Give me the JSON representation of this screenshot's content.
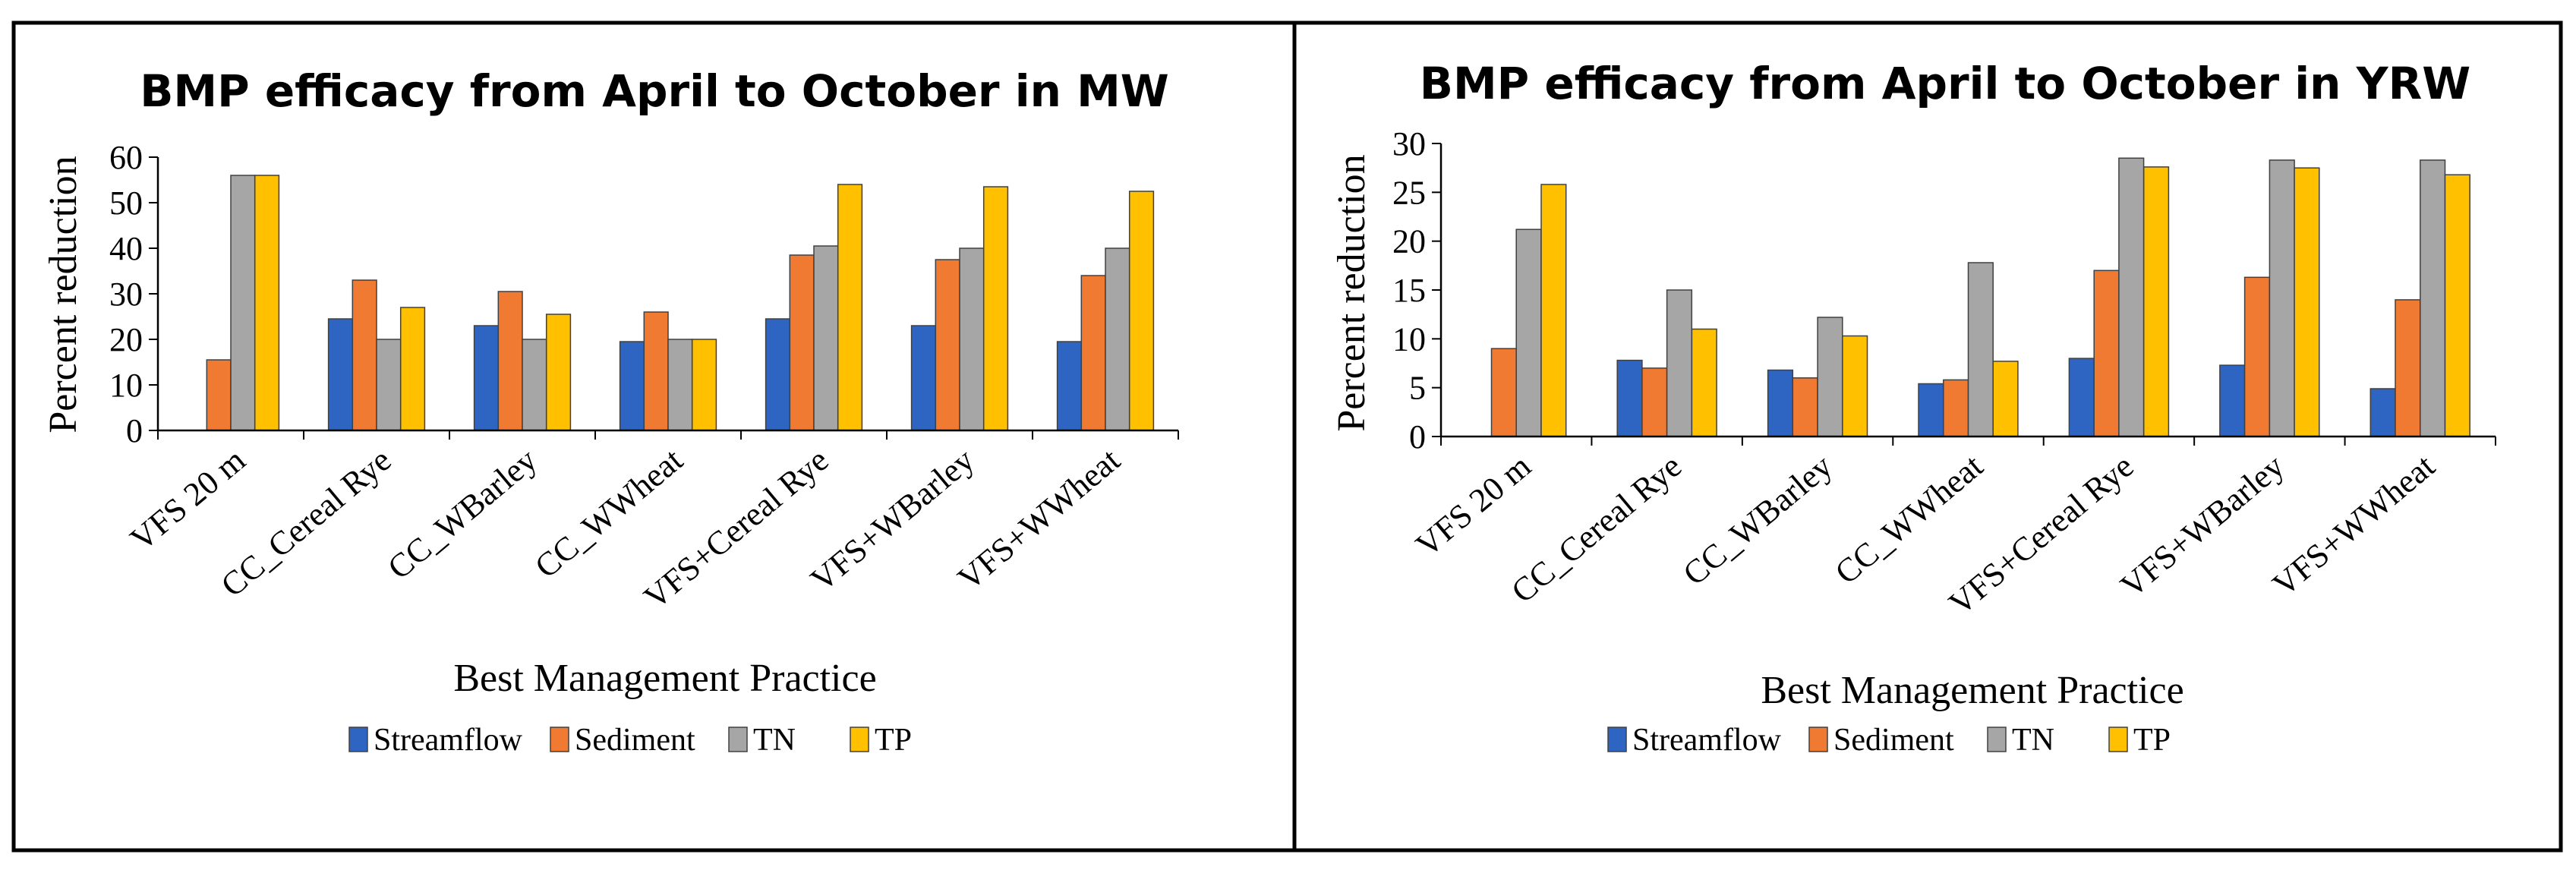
{
  "chart_data": [
    {
      "type": "bar",
      "title": "BMP efficacy from April to October in MW",
      "xlabel": "Best Management Practice",
      "ylabel": "Percent reduction",
      "ylim": [
        0,
        60
      ],
      "yticks": [
        0,
        10,
        20,
        30,
        40,
        50,
        60
      ],
      "grid": false,
      "legend": "bottom",
      "categories": [
        "VFS 20 m",
        "CC_Cereal Rye",
        "CC_WBarley",
        "CC_WWheat",
        "VFS+Cereal Rye",
        "VFS+WBarley",
        "VFS+WWheat"
      ],
      "series": [
        {
          "name": "Streamflow",
          "color": "#2e64c2",
          "values": [
            0,
            24.5,
            23,
            19.5,
            24.5,
            23,
            19.5
          ]
        },
        {
          "name": "Sediment",
          "color": "#f07a32",
          "values": [
            15.5,
            33,
            30.5,
            26,
            38.5,
            37.5,
            34
          ]
        },
        {
          "name": "TN",
          "color": "#a6a6a6",
          "values": [
            56,
            20,
            20,
            20,
            40.5,
            40,
            40
          ]
        },
        {
          "name": "TP",
          "color": "#ffc000",
          "values": [
            56,
            27,
            25.5,
            20,
            54,
            53.5,
            52.5
          ]
        }
      ]
    },
    {
      "type": "bar",
      "title": "BMP efficacy from April to October in YRW",
      "xlabel": "Best Management Practice",
      "ylabel": "Percent reduction",
      "ylim": [
        0,
        30
      ],
      "yticks": [
        0,
        5,
        10,
        15,
        20,
        25,
        30
      ],
      "grid": false,
      "legend": "bottom",
      "categories": [
        "VFS 20 m",
        "CC_Cereal Rye",
        "CC_WBarley",
        "CC_WWheat",
        "VFS+Cereal Rye",
        "VFS+WBarley",
        "VFS+WWheat"
      ],
      "series": [
        {
          "name": "Streamflow",
          "color": "#2e64c2",
          "values": [
            0,
            7.8,
            6.8,
            5.4,
            8,
            7.3,
            4.9
          ]
        },
        {
          "name": "Sediment",
          "color": "#f07a32",
          "values": [
            9,
            7,
            6,
            5.8,
            17,
            16.3,
            14
          ]
        },
        {
          "name": "TN",
          "color": "#a6a6a6",
          "values": [
            21.2,
            15,
            12.2,
            17.8,
            28.5,
            28.3,
            28.3
          ]
        },
        {
          "name": "TP",
          "color": "#ffc000",
          "values": [
            25.8,
            11,
            10.3,
            7.7,
            27.6,
            27.5,
            26.8
          ]
        }
      ]
    }
  ]
}
